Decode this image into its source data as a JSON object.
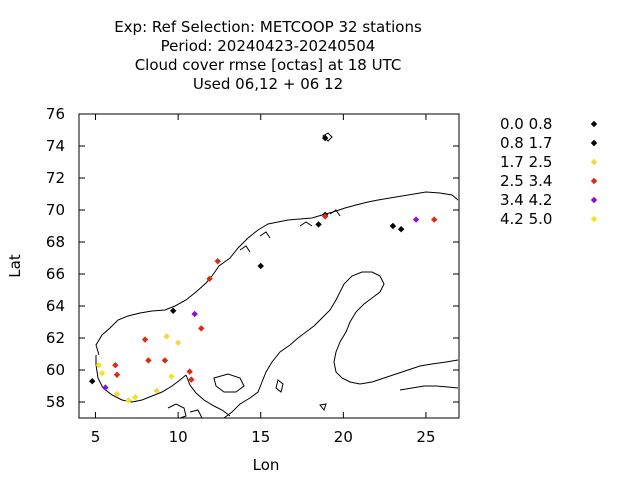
{
  "chart_data": {
    "type": "scatter",
    "title_lines": [
      "Exp: Ref   Selection: METCOOP     32 stations",
      "Period: 20240423-20240504",
      "Cloud cover rmse [octas] at  18 UTC",
      "Used  06,12  + 06 12"
    ],
    "xlabel": "Lon",
    "ylabel": "Lat",
    "xlim": [
      4,
      27
    ],
    "ylim": [
      57,
      76
    ],
    "xticks": [
      5,
      10,
      15,
      20,
      25
    ],
    "yticks": [
      58,
      60,
      62,
      64,
      66,
      68,
      70,
      72,
      74,
      76
    ],
    "grid": false,
    "legend_position": "right",
    "legend": [
      {
        "label": "0.0 0.8",
        "color": "#000000"
      },
      {
        "label": "0.8 1.7",
        "color": "#000000"
      },
      {
        "label": "1.7 2.5",
        "color": "#f5d742"
      },
      {
        "label": "2.5 3.4",
        "color": "#dd2a11"
      },
      {
        "label": "3.4 4.2",
        "color": "#8a10d8"
      },
      {
        "label": "4.2 5.0",
        "color": "#f5e11e"
      }
    ],
    "points": [
      {
        "lon": 18.9,
        "lat": 74.5,
        "cls": 0
      },
      {
        "lon": 15.0,
        "lat": 66.5,
        "cls": 0
      },
      {
        "lon": 18.5,
        "lat": 69.1,
        "cls": 0
      },
      {
        "lon": 23.0,
        "lat": 69.0,
        "cls": 0
      },
      {
        "lon": 23.5,
        "lat": 68.8,
        "cls": 0
      },
      {
        "lon": 4.8,
        "lat": 59.3,
        "cls": 1
      },
      {
        "lon": 9.7,
        "lat": 63.7,
        "cls": 1
      },
      {
        "lon": 18.9,
        "lat": 69.7,
        "cls": 1
      },
      {
        "lon": 10.0,
        "lat": 61.7,
        "cls": 2
      },
      {
        "lon": 9.3,
        "lat": 62.1,
        "cls": 2
      },
      {
        "lon": 6.3,
        "lat": 58.5,
        "cls": 2
      },
      {
        "lon": 8.7,
        "lat": 58.7,
        "cls": 2
      },
      {
        "lon": 18.9,
        "lat": 69.6,
        "cls": 3
      },
      {
        "lon": 25.5,
        "lat": 69.4,
        "cls": 3
      },
      {
        "lon": 12.4,
        "lat": 66.8,
        "cls": 3
      },
      {
        "lon": 11.9,
        "lat": 65.7,
        "cls": 3
      },
      {
        "lon": 11.4,
        "lat": 62.6,
        "cls": 3
      },
      {
        "lon": 8.0,
        "lat": 61.9,
        "cls": 3
      },
      {
        "lon": 8.2,
        "lat": 60.6,
        "cls": 3
      },
      {
        "lon": 9.2,
        "lat": 60.6,
        "cls": 3
      },
      {
        "lon": 6.2,
        "lat": 60.3,
        "cls": 3
      },
      {
        "lon": 10.7,
        "lat": 59.9,
        "cls": 3
      },
      {
        "lon": 10.8,
        "lat": 59.4,
        "cls": 3
      },
      {
        "lon": 6.3,
        "lat": 59.7,
        "cls": 3
      },
      {
        "lon": 24.4,
        "lat": 69.4,
        "cls": 4
      },
      {
        "lon": 11.0,
        "lat": 63.5,
        "cls": 4
      },
      {
        "lon": 5.6,
        "lat": 58.9,
        "cls": 4
      },
      {
        "lon": 5.2,
        "lat": 60.3,
        "cls": 5
      },
      {
        "lon": 5.4,
        "lat": 59.8,
        "cls": 5
      },
      {
        "lon": 9.6,
        "lat": 59.6,
        "cls": 5
      },
      {
        "lon": 7.0,
        "lat": 58.1,
        "cls": 5
      },
      {
        "lon": 7.4,
        "lat": 58.3,
        "cls": 5
      }
    ]
  }
}
